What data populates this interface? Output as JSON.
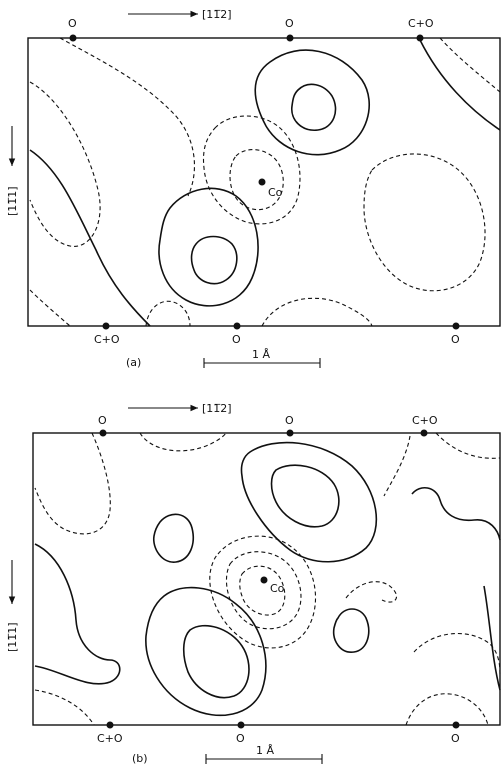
{
  "panel_a": {
    "direction_top": "[11̅2]",
    "direction_side": "[11̅1]",
    "top_atoms": [
      "O",
      "O",
      "C+O"
    ],
    "bottom_atoms": [
      "C+O",
      "O",
      "O"
    ],
    "center_atom": "Co",
    "label": "(a)",
    "scale": "1 Å"
  },
  "panel_b": {
    "direction_top": "[11̅2]",
    "direction_side": "[11̅1]",
    "top_atoms": [
      "O",
      "O",
      "C+O"
    ],
    "bottom_atoms": [
      "C+O",
      "O",
      "O"
    ],
    "center_atom": "Co",
    "label": "(b)",
    "scale": "1 Å"
  }
}
